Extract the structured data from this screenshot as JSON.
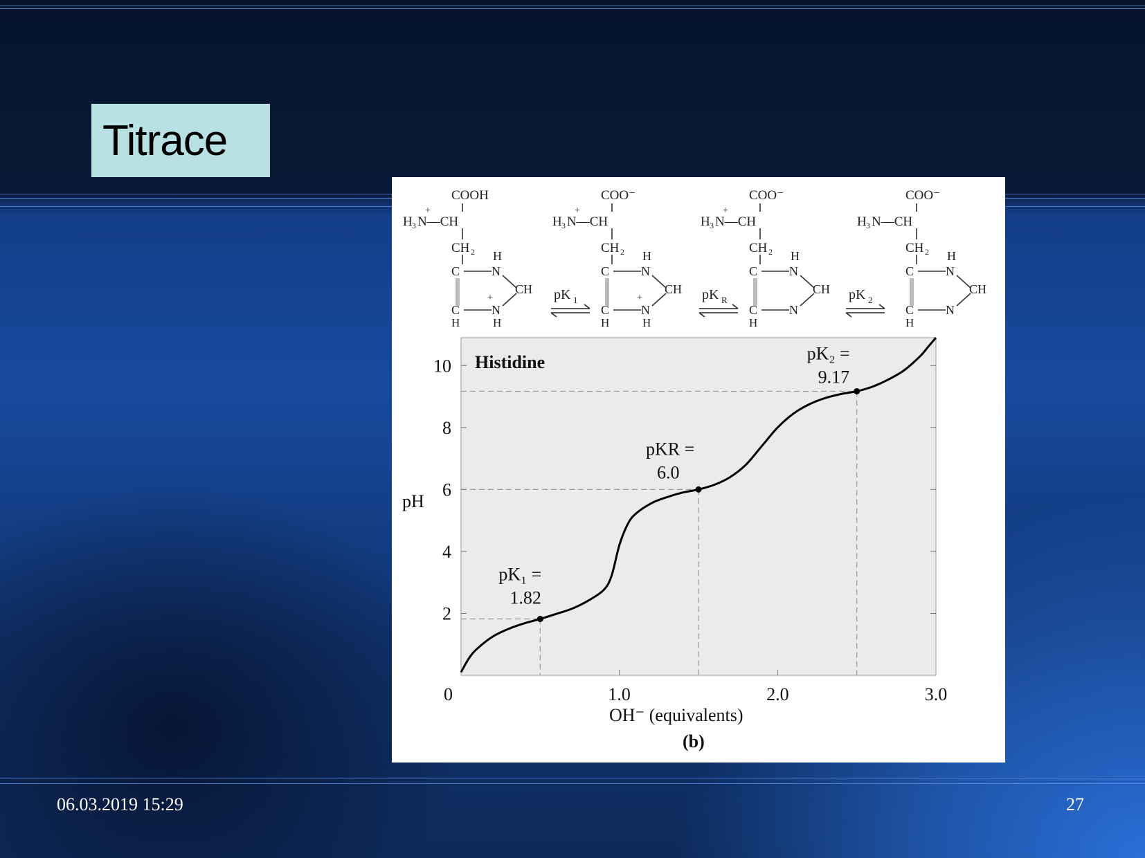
{
  "slide": {
    "title": "Titrace",
    "date": "06.03.2019 15:29",
    "page_number": "27"
  },
  "structures": [
    {
      "top": "COOH",
      "alpha_amine": "H3N—CH",
      "alpha_amine_main": "H",
      "alpha_amine_sub": "3",
      "alpha_amine_rest": "N—CH",
      "plus": "+",
      "ch2": "CH2",
      "ring_top_h": "H",
      "ring_n1": "N",
      "ring_ch": "CH",
      "ring_n2": "N",
      "ring_c1": "C",
      "ring_c2": "C",
      "ring_h_bottom_left": "H",
      "ring_h_bottom_right": "H",
      "ring_plus": "+"
    },
    {
      "top": "COO⁻"
    },
    {
      "top": "COO⁻"
    },
    {
      "top": "COO⁻"
    }
  ],
  "arrows": [
    {
      "label_main": "pK",
      "label_sub": "1"
    },
    {
      "label_main": "pK",
      "label_sub": "R"
    },
    {
      "label_main": "pK",
      "label_sub": "2"
    }
  ],
  "chart_data": {
    "type": "line",
    "title": "Histidine",
    "xlabel": "OH⁻ (equivalents)",
    "ylabel": "pH",
    "caption": "(b)",
    "xlim": [
      0,
      3.0
    ],
    "ylim": [
      0,
      10.9
    ],
    "x_ticks": [
      "0",
      "1.0",
      "2.0",
      "3.0"
    ],
    "y_ticks": [
      "2",
      "4",
      "6",
      "8",
      "10"
    ],
    "grid": false,
    "series": [
      {
        "x": [
          0.0,
          0.05,
          0.1,
          0.2,
          0.3,
          0.4,
          0.5,
          0.6,
          0.7,
          0.8,
          0.9,
          0.95,
          1.0,
          1.05,
          1.1,
          1.2,
          1.3,
          1.4,
          1.5,
          1.6,
          1.7,
          1.8,
          1.9,
          2.0,
          2.1,
          2.2,
          2.3,
          2.4,
          2.5,
          2.6,
          2.7,
          2.8,
          2.9,
          2.95,
          3.0
        ],
        "y": [
          0.1,
          0.55,
          0.85,
          1.25,
          1.5,
          1.68,
          1.82,
          1.98,
          2.15,
          2.4,
          2.75,
          3.2,
          4.2,
          4.85,
          5.2,
          5.55,
          5.75,
          5.9,
          6.0,
          6.15,
          6.4,
          6.8,
          7.4,
          8.0,
          8.45,
          8.75,
          8.95,
          9.08,
          9.17,
          9.32,
          9.55,
          9.85,
          10.3,
          10.6,
          10.9
        ]
      }
    ],
    "points": [
      {
        "name": "pK1",
        "x": 0.5,
        "y": 1.82,
        "label_line1": "pK₁ =",
        "label_line2": "1.82"
      },
      {
        "name": "pKR",
        "x": 1.5,
        "y": 6.0,
        "label_line1": "pKR =",
        "label_line2": "6.0"
      },
      {
        "name": "pK2",
        "x": 2.5,
        "y": 9.17,
        "label_line1": "pK₂ =",
        "label_line2": "9.17"
      }
    ]
  }
}
